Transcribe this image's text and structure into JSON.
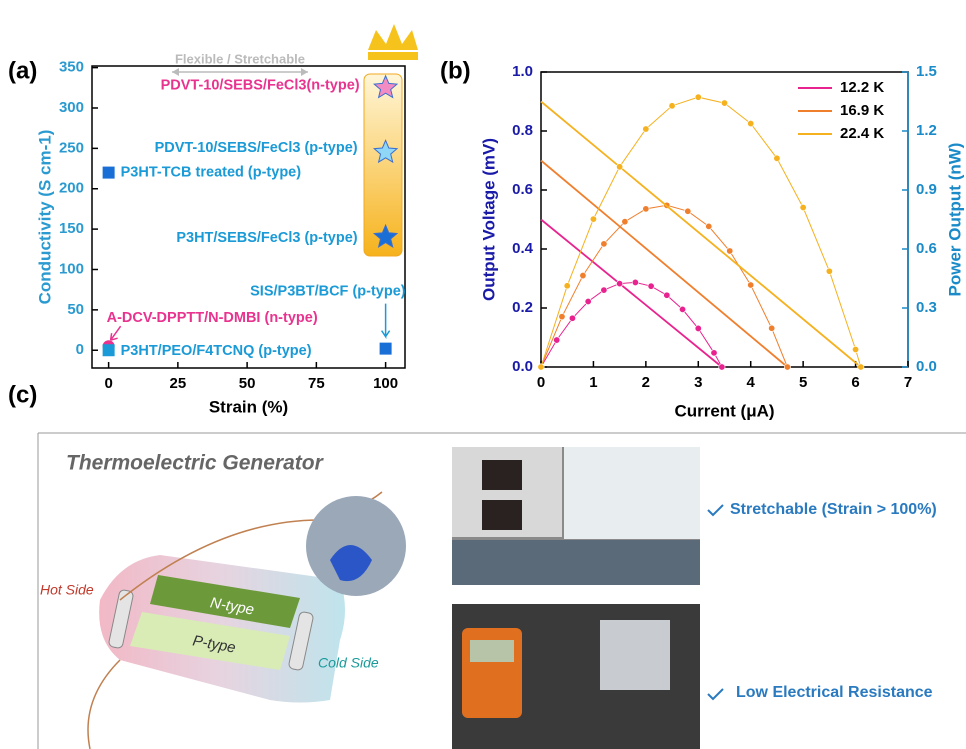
{
  "panel_labels": [
    "(a)",
    "(b)",
    "(c)"
  ],
  "chart_data": [
    {
      "type": "scatter",
      "annotation": "Flexible / Stretchable",
      "xlabel": "Strain (%)",
      "ylabel": "Conductivity (S cm-1)",
      "xlim": [
        -6,
        107
      ],
      "ylim": [
        -22,
        352
      ],
      "xticks": [
        0,
        25,
        50,
        75,
        100
      ],
      "yticks": [
        0,
        50,
        100,
        150,
        200,
        250,
        300,
        350
      ],
      "points": [
        {
          "label": "PDVT-10/SEBS/FeCl3(n-type)",
          "x": 100,
          "y": 325,
          "marker": "star",
          "color": "#f48cc4",
          "label_color": "#e8338f"
        },
        {
          "label": "PDVT-10/SEBS/FeCl3 (p-type)",
          "x": 100,
          "y": 245,
          "marker": "star",
          "color": "#8fd6f7",
          "label_color": "#1a9ad6"
        },
        {
          "label": "P3HT-TCB treated (p-type)",
          "x": 0,
          "y": 220,
          "marker": "square",
          "color": "#1a6fd6",
          "label_color": "#1a9ad6"
        },
        {
          "label": "P3HT/SEBS/FeCl3 (p-type)",
          "x": 100,
          "y": 140,
          "marker": "star",
          "color": "#1a6fd6",
          "label_color": "#1a9ad6"
        },
        {
          "label": "SIS/P3BT/BCF (p-type)",
          "x": 100,
          "y": 2,
          "marker": "square",
          "color": "#1a6fd6",
          "label_color": "#1a9ad6"
        },
        {
          "label": "A-DCV-DPPTT/N-DMBI (n-type)",
          "x": 0,
          "y": 5,
          "marker": "circle",
          "color": "#e8338f",
          "label_color": "#e8338f"
        },
        {
          "label": "P3HT/PEO/F4TCNQ (p-type)",
          "x": 0,
          "y": 0,
          "marker": "square",
          "color": "#1a9ad6",
          "label_color": "#1a9ad6"
        }
      ]
    },
    {
      "type": "line",
      "xlabel": "Current (μA)",
      "ylabel": "Output Voltage (mV)",
      "y2label": "Power Output (nW)",
      "xlim": [
        0,
        7
      ],
      "ylim": [
        0,
        1
      ],
      "y2lim": [
        0,
        1.5
      ],
      "xticks": [
        0,
        1,
        2,
        3,
        4,
        5,
        6,
        7
      ],
      "yticks": [
        {
          "value": 0,
          "label": "0.0"
        },
        0.2,
        0.4,
        0.6,
        0.8,
        {
          "value": 1,
          "label": "1.0"
        }
      ],
      "y2ticks": [
        {
          "value": 0,
          "label": "0.0"
        },
        0.3,
        0.6,
        0.9,
        1.2,
        1.5
      ],
      "legend": "upper right",
      "series": [
        {
          "name": "12.2 K",
          "color": "#e8238f",
          "voltage": {
            "x": [
              0,
              3.45
            ],
            "values": [
              0.5,
              0
            ]
          },
          "power": {
            "axis": "y2",
            "x": [
              0,
              0.3,
              0.6,
              0.9,
              1.2,
              1.5,
              1.8,
              2.1,
              2.4,
              2.7,
              3.0,
              3.3,
              3.45
            ],
            "values": [
              0,
              0.137,
              0.248,
              0.333,
              0.391,
              0.424,
              0.43,
              0.411,
              0.365,
              0.293,
              0.196,
              0.072,
              0
            ]
          }
        },
        {
          "name": "16.9 K",
          "color": "#f07f2d",
          "voltage": {
            "x": [
              0,
              4.7
            ],
            "values": [
              0.7,
              0
            ]
          },
          "power": {
            "axis": "y2",
            "x": [
              0,
              0.4,
              0.8,
              1.2,
              1.6,
              2.0,
              2.4,
              2.8,
              3.2,
              3.6,
              4.0,
              4.4,
              4.7
            ],
            "values": [
              0,
              0.256,
              0.465,
              0.626,
              0.739,
              0.804,
              0.822,
              0.792,
              0.715,
              0.59,
              0.417,
              0.197,
              0
            ]
          }
        },
        {
          "name": "22.4 K",
          "color": "#f5b11e",
          "voltage": {
            "x": [
              0,
              6.1
            ],
            "values": [
              0.9,
              0
            ]
          },
          "power": {
            "axis": "y2",
            "x": [
              0,
              0.5,
              1.0,
              1.5,
              2.0,
              2.5,
              3.0,
              3.5,
              4.0,
              4.5,
              5.0,
              5.5,
              6.0,
              6.1
            ],
            "values": [
              0,
              0.413,
              0.752,
              1.018,
              1.21,
              1.328,
              1.372,
              1.342,
              1.238,
              1.061,
              0.811,
              0.487,
              0.089,
              0
            ]
          }
        }
      ]
    }
  ],
  "generator": {
    "title": "Thermoelectric Generator",
    "hot_side": "Hot Side",
    "cold_side": "Cold Side",
    "n_type": "N-type",
    "p_type": "P-type"
  },
  "features": [
    "Stretchable (Strain > 100%)",
    "Low Electrical Resistance"
  ]
}
